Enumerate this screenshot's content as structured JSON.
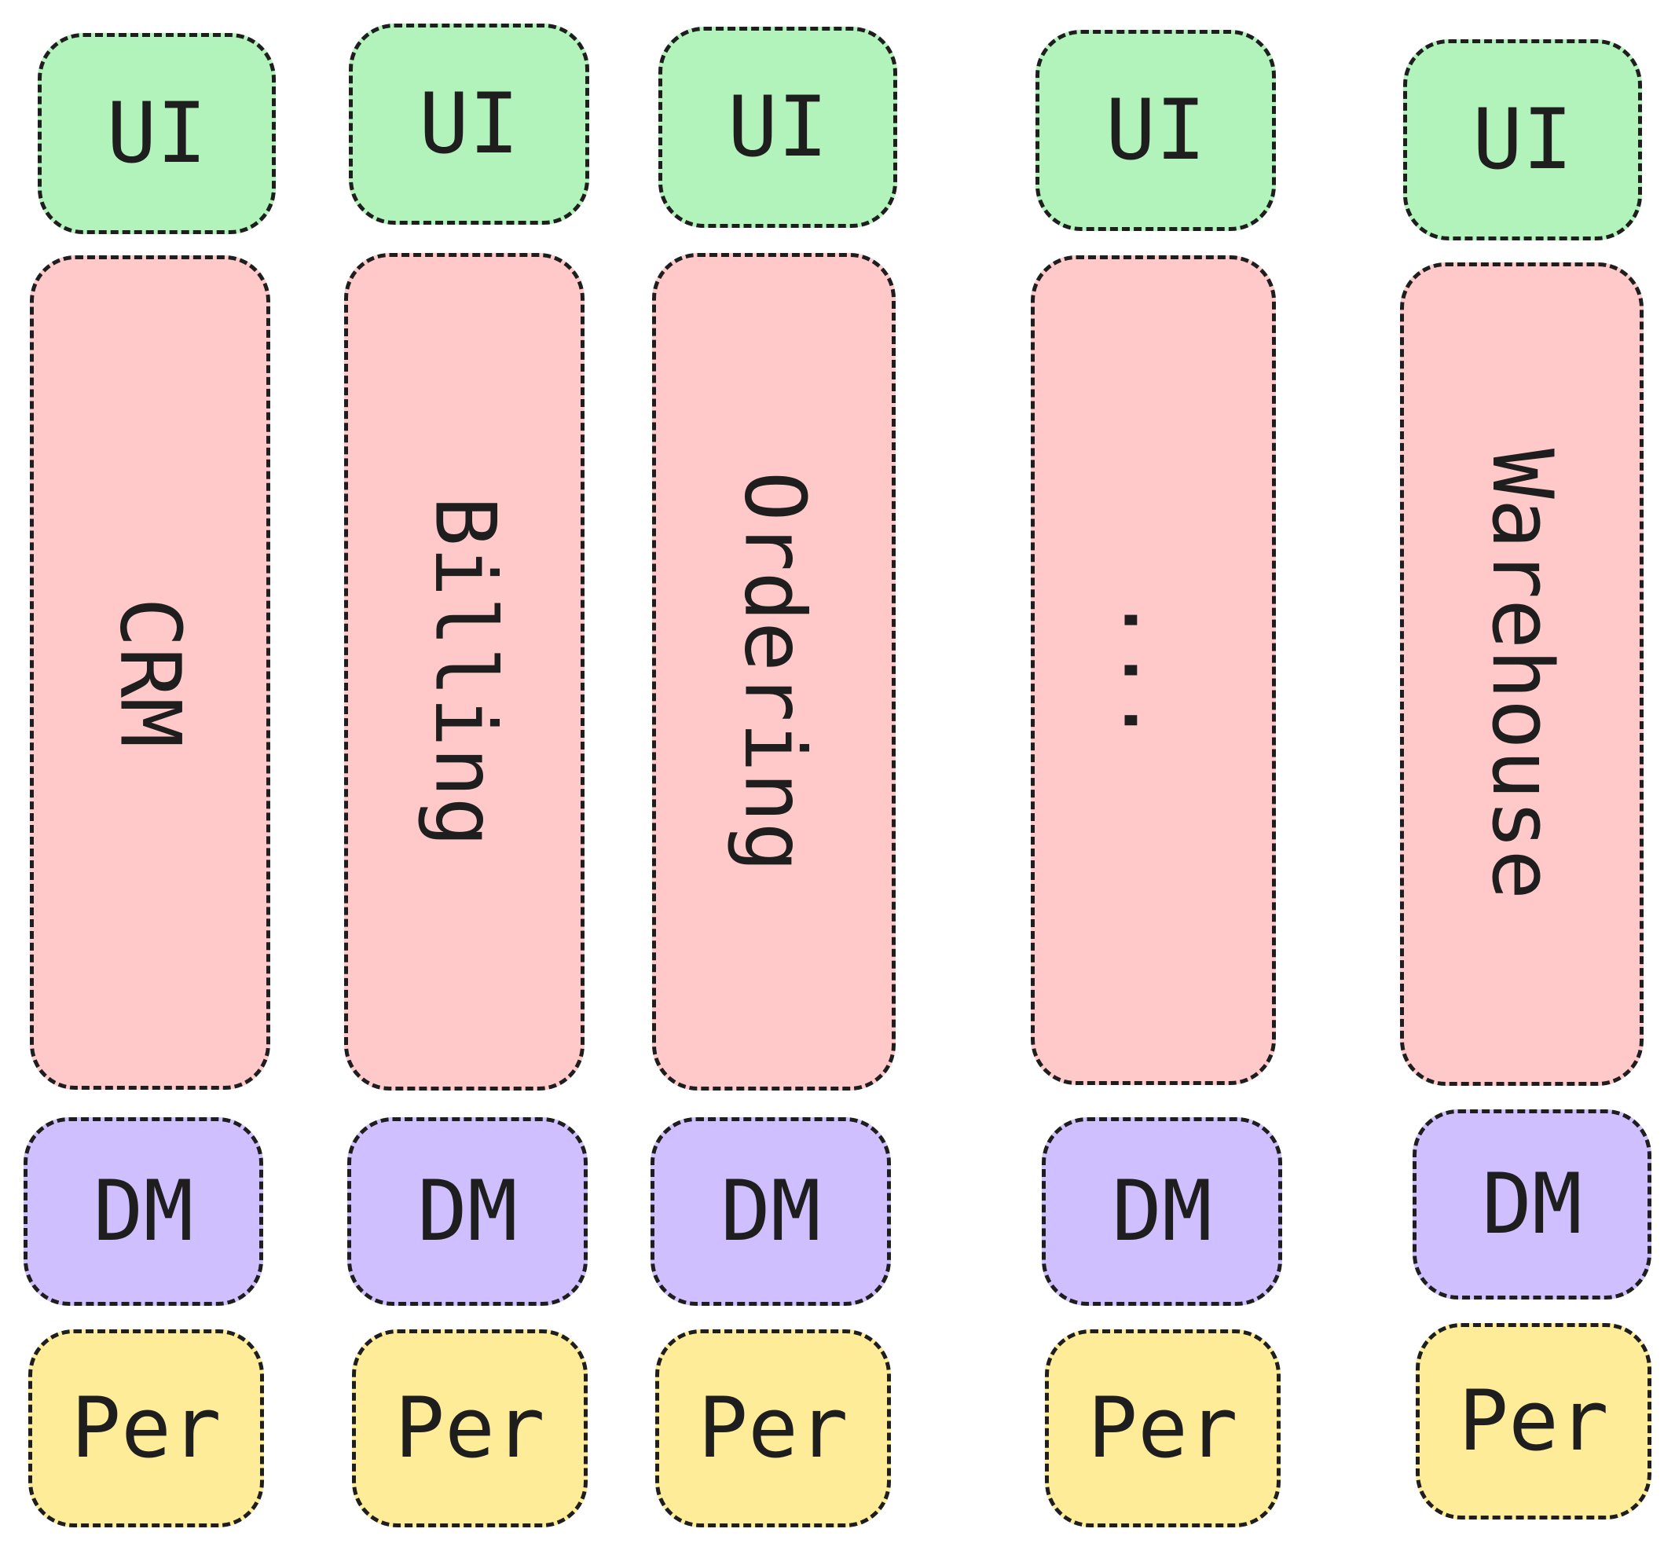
{
  "colors": {
    "ui": "#b2f2bb",
    "app": "#ffc9c9",
    "dm": "#d0bfff",
    "per": "#ffec99",
    "stroke": "#1e1e1e"
  },
  "columns": [
    {
      "ui": "UI",
      "app": "CRM",
      "dm": "DM",
      "per": "Per"
    },
    {
      "ui": "UI",
      "app": "Billing",
      "dm": "DM",
      "per": "Per"
    },
    {
      "ui": "UI",
      "app": "Ordering",
      "dm": "DM",
      "per": "Per"
    },
    {
      "ui": "UI",
      "app": "...",
      "dm": "DM",
      "per": "Per"
    },
    {
      "ui": "UI",
      "app": "Warehouse",
      "dm": "DM",
      "per": "Per"
    }
  ]
}
